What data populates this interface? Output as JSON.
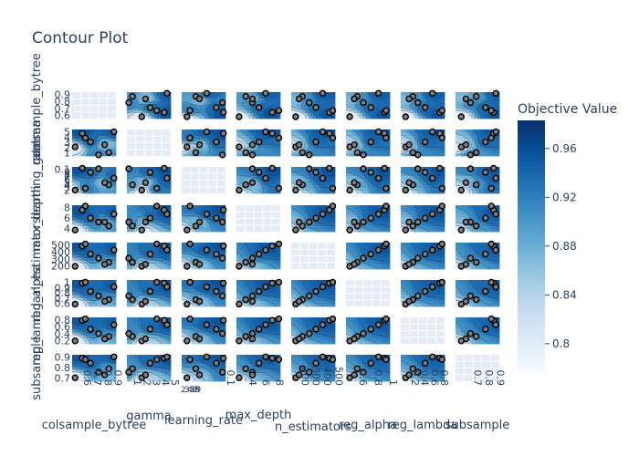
{
  "chart_data": {
    "type": "contour",
    "title": "Contour Plot",
    "colorbar": {
      "title": "Objective Value",
      "range": [
        0.776,
        0.983
      ],
      "ticks": [
        0.8,
        0.84,
        0.88,
        0.92,
        0.96
      ],
      "tick_labels": [
        "0.8",
        "0.84",
        "0.88",
        "0.92",
        "0.96"
      ],
      "colorscale": [
        "#f7fbff",
        "#deebf7",
        "#c6dbef",
        "#9ecae1",
        "#6baed6",
        "#4292c6",
        "#2171b5",
        "#08519c",
        "#08306b"
      ]
    },
    "params": [
      {
        "name": "colsample_bytree",
        "range": [
          0.52,
          0.95
        ],
        "ticks": [
          0.6,
          0.7,
          0.8,
          0.9
        ],
        "tick_labels": [
          "0.6",
          "0.7",
          "0.8",
          "0.9"
        ],
        "scale": "linear"
      },
      {
        "name": "gamma",
        "range": [
          0.6,
          5.3
        ],
        "ticks": [
          1,
          2,
          3,
          4,
          5
        ],
        "tick_labels": [
          "1",
          "2",
          "3",
          "4",
          "5"
        ],
        "scale": "linear"
      },
      {
        "name": "learning_rate",
        "range": [
          0.0018,
          0.12
        ],
        "ticks": [
          0.002,
          0.003,
          0.004,
          0.005,
          0.006,
          0.007,
          0.008,
          0.009,
          0.1
        ],
        "tick_labels": [
          "2",
          "3",
          "4",
          "5",
          "6",
          "7",
          "8",
          "9",
          "0.1"
        ],
        "scale": "log"
      },
      {
        "name": "max_depth",
        "range": [
          2.6,
          9.2
        ],
        "ticks": [
          4,
          6,
          8
        ],
        "tick_labels": [
          "4",
          "6",
          "8"
        ],
        "scale": "linear"
      },
      {
        "name": "n_estimators",
        "range": [
          140,
          530
        ],
        "ticks": [
          200,
          300,
          400,
          500
        ],
        "tick_labels": [
          "200",
          "300",
          "400",
          "500"
        ],
        "scale": "linear"
      },
      {
        "name": "reg_alpha",
        "range": [
          0.47,
          1.05
        ],
        "ticks": [
          0.6,
          0.8,
          1
        ],
        "tick_labels": [
          "0.6",
          "0.8",
          "1"
        ],
        "scale": "linear"
      },
      {
        "name": "reg_lambda",
        "range": [
          0.05,
          0.95
        ],
        "ticks": [
          0.2,
          0.4,
          0.6,
          0.8
        ],
        "tick_labels": [
          "0.2",
          "0.4",
          "0.6",
          "0.8"
        ],
        "scale": "linear"
      },
      {
        "name": "subsample",
        "range": [
          0.57,
          0.95
        ],
        "ticks": [
          0.7,
          0.8,
          0.9
        ],
        "tick_labels": [
          "0.7",
          "0.8",
          "0.9"
        ],
        "scale": "linear"
      }
    ],
    "y_tick_labels": [
      [
        "0.6",
        "0.7",
        "0.8",
        "0.9"
      ],
      [
        "1",
        "2",
        "3",
        "4",
        "5"
      ],
      [
        "2",
        "3",
        "4",
        "5",
        "6",
        "7",
        "8",
        "9",
        "0.1"
      ],
      [
        "4",
        "6",
        "8"
      ],
      [
        "200",
        "300",
        "400",
        "500"
      ],
      [
        "0.6",
        "0.7",
        "0.8",
        "0.9",
        "1"
      ],
      [
        "0.2",
        "0.4",
        "0.6",
        "0.8"
      ],
      [
        "0.7",
        "0.8",
        "0.9"
      ]
    ],
    "trials": [
      {
        "colsample_bytree": 0.62,
        "gamma": 4.6,
        "learning_rate": 0.098,
        "max_depth": 8,
        "n_estimators": 480,
        "reg_alpha": 0.98,
        "reg_lambda": 0.85,
        "subsample": 0.9,
        "value": 0.96
      },
      {
        "colsample_bytree": 0.88,
        "gamma": 1.2,
        "learning_rate": 0.007,
        "max_depth": 4,
        "n_estimators": 240,
        "reg_alpha": 0.62,
        "reg_lambda": 0.3,
        "subsample": 0.75,
        "value": 0.9
      },
      {
        "colsample_bytree": 0.7,
        "gamma": 3.1,
        "learning_rate": 0.05,
        "max_depth": 6,
        "n_estimators": 360,
        "reg_alpha": 0.8,
        "reg_lambda": 0.55,
        "subsample": 0.83,
        "value": 0.94
      },
      {
        "colsample_bytree": 0.55,
        "gamma": 2.2,
        "learning_rate": 0.003,
        "max_depth": 3,
        "n_estimators": 180,
        "reg_alpha": 0.52,
        "reg_lambda": 0.15,
        "subsample": 0.62,
        "value": 0.79
      },
      {
        "colsample_bytree": 0.93,
        "gamma": 4.9,
        "learning_rate": 0.02,
        "max_depth": 7,
        "n_estimators": 420,
        "reg_alpha": 0.9,
        "reg_lambda": 0.7,
        "subsample": 0.92,
        "value": 0.95
      },
      {
        "colsample_bytree": 0.78,
        "gamma": 0.8,
        "learning_rate": 0.09,
        "max_depth": 5,
        "n_estimators": 300,
        "reg_alpha": 0.7,
        "reg_lambda": 0.4,
        "subsample": 0.7,
        "value": 0.92
      },
      {
        "colsample_bytree": 0.65,
        "gamma": 3.8,
        "learning_rate": 0.004,
        "max_depth": 9,
        "n_estimators": 510,
        "reg_alpha": 1.0,
        "reg_lambda": 0.9,
        "subsample": 0.88,
        "value": 0.93
      },
      {
        "colsample_bytree": 0.84,
        "gamma": 2.6,
        "learning_rate": 0.01,
        "max_depth": 5,
        "n_estimators": 210,
        "reg_alpha": 0.58,
        "reg_lambda": 0.22,
        "subsample": 0.66,
        "value": 0.86
      }
    ]
  }
}
